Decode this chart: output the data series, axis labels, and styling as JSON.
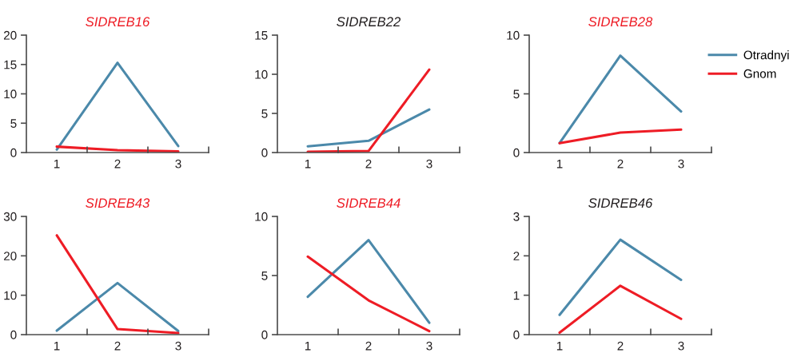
{
  "chart_data": [
    {
      "type": "line",
      "title": "SIDREB16",
      "categories": [
        "1",
        "2",
        "3"
      ],
      "ylim": [
        0,
        20
      ],
      "yticks": [
        0,
        5,
        10,
        15,
        20
      ],
      "grid": false,
      "legend": "right",
      "marker": "none",
      "line_style": "solid",
      "series": [
        {
          "name": "Otradnyi",
          "color": "#4b89aa",
          "values": [
            0.5,
            15.3,
            1.1
          ]
        },
        {
          "name": "Gnom",
          "color": "#ee1c25",
          "values": [
            1.0,
            0.4,
            0.2
          ]
        }
      ]
    },
    {
      "type": "line",
      "title": "SIDREB22",
      "categories": [
        "1",
        "2",
        "3"
      ],
      "ylim": [
        0,
        15
      ],
      "yticks": [
        0,
        5,
        10,
        15
      ],
      "grid": false,
      "marker": "none",
      "line_style": "solid",
      "series": [
        {
          "color": "#4b89aa",
          "values": [
            0.8,
            1.5,
            5.5
          ]
        },
        {
          "color": "#ee1c25",
          "values": [
            0.1,
            0.2,
            10.6
          ]
        }
      ]
    },
    {
      "type": "line",
      "title": "SIDREB28",
      "categories": [
        "1",
        "2",
        "3"
      ],
      "ylim": [
        0,
        10
      ],
      "yticks": [
        0,
        5,
        10
      ],
      "grid": false,
      "marker": "none",
      "line_style": "solid",
      "series": [
        {
          "color": "#4b89aa",
          "values": [
            0.8,
            8.25,
            3.5
          ]
        },
        {
          "color": "#ee1c25",
          "values": [
            0.8,
            1.7,
            1.95
          ]
        }
      ]
    },
    {
      "type": "line",
      "title": "SIDREB43",
      "categories": [
        "1",
        "2",
        "3"
      ],
      "ylim": [
        0,
        30
      ],
      "yticks": [
        0,
        10,
        20,
        30
      ],
      "grid": false,
      "marker": "none",
      "line_style": "solid",
      "series": [
        {
          "color": "#4b89aa",
          "values": [
            1.0,
            13.1,
            0.9
          ]
        },
        {
          "color": "#ee1c25",
          "values": [
            25.2,
            1.4,
            0.4
          ]
        }
      ]
    },
    {
      "type": "line",
      "title": "SIDREB44",
      "categories": [
        "1",
        "2",
        "3"
      ],
      "ylim": [
        0,
        10
      ],
      "yticks": [
        0,
        5,
        10
      ],
      "grid": false,
      "marker": "none",
      "line_style": "solid",
      "series": [
        {
          "color": "#4b89aa",
          "values": [
            3.2,
            8.0,
            1.0
          ]
        },
        {
          "color": "#ee1c25",
          "values": [
            6.6,
            2.9,
            0.3
          ]
        }
      ]
    },
    {
      "type": "line",
      "title": "SIDREB46",
      "categories": [
        "1",
        "2",
        "3"
      ],
      "ylim": [
        0,
        3
      ],
      "yticks": [
        0,
        1,
        2,
        3
      ],
      "grid": false,
      "marker": "none",
      "line_style": "solid",
      "series": [
        {
          "color": "#4b89aa",
          "values": [
            0.5,
            2.41,
            1.39
          ]
        },
        {
          "color": "#ee1c25",
          "values": [
            0.05,
            1.24,
            0.4
          ]
        }
      ]
    }
  ]
}
